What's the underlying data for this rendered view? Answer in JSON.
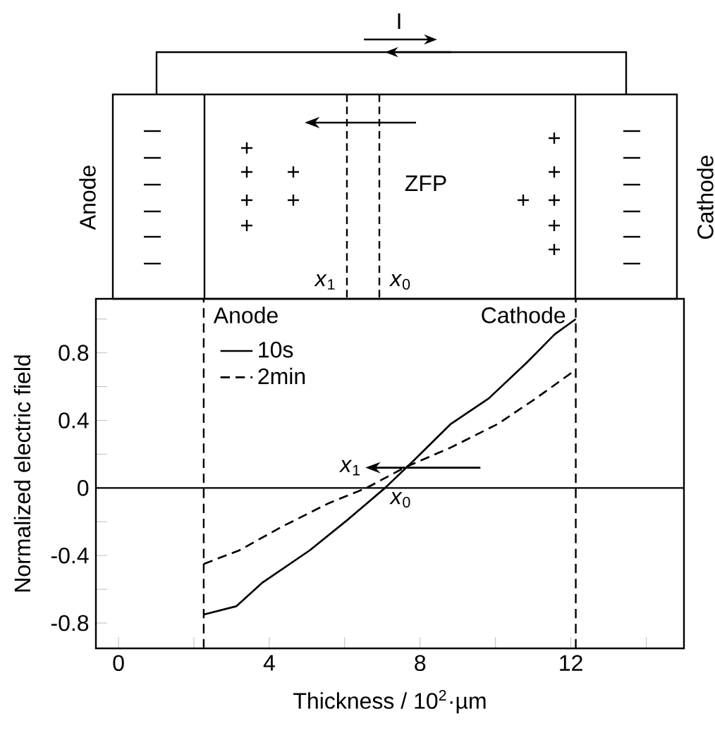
{
  "chart_data": {
    "type": "line",
    "xlabel": "Thickness / 10$^{2}$·µm",
    "ylabel": "Normalized electric field",
    "xlim": [
      -0.6,
      15
    ],
    "ylim": [
      -0.95,
      1.12
    ],
    "xticks": [
      0,
      {
        "value": 2,
        "label": null
      },
      4,
      {
        "value": 6,
        "label": null
      },
      8,
      {
        "value": 10,
        "label": null
      },
      12,
      {
        "value": 14,
        "label": null
      }
    ],
    "yticks": [
      -0.8,
      {
        "value": -0.6,
        "label": null
      },
      -0.4,
      {
        "value": -0.2,
        "label": null
      },
      0,
      {
        "value": 0.2,
        "label": null
      },
      0.4,
      {
        "value": 0.6,
        "label": null
      },
      0.8,
      {
        "value": 1.0,
        "label": null
      }
    ],
    "grid": false,
    "legend": "top left",
    "marker": "none",
    "series": [
      {
        "name": "10s",
        "color": "#000000",
        "line_style": "solid",
        "x": [
          2.26,
          3.13,
          3.82,
          5.07,
          6.07,
          7.07,
          7.82,
          8.82,
          9.82,
          10.82,
          11.57,
          12.13
        ],
        "values": [
          -0.75,
          -0.7,
          -0.56,
          -0.37,
          -0.19,
          0,
          0.16,
          0.38,
          0.53,
          0.74,
          0.91,
          1.0
        ]
      },
      {
        "name": "2min",
        "color": "#000000",
        "line_style": "dashed",
        "x": [
          2.26,
          3.2,
          4.33,
          5.58,
          6.58,
          7.58,
          8.82,
          10.07,
          11.07,
          12.13
        ],
        "values": [
          -0.45,
          -0.37,
          -0.23,
          -0.09,
          0,
          0.12,
          0.24,
          0.38,
          0.53,
          0.7
        ]
      }
    ],
    "ref_lines": [
      {
        "axis": "x",
        "value": 2.26,
        "label": "Anode",
        "line_style": "dashed",
        "color": "#000000"
      },
      {
        "axis": "x",
        "value": 12.13,
        "label": "Cathode",
        "line_style": "dashed",
        "color": "#000000"
      },
      {
        "axis": "y",
        "value": 0,
        "line_style": "solid",
        "color": "#000000"
      }
    ],
    "annotations": [
      "*x*$_{1}$",
      {
        "text": "*x*$_{0}$",
        "x": 7.1,
        "y": 0
      },
      "I",
      "Anode",
      "Cathode",
      "ZFP",
      "*x*$_{1}$",
      "*x*$_{0}$"
    ]
  }
}
